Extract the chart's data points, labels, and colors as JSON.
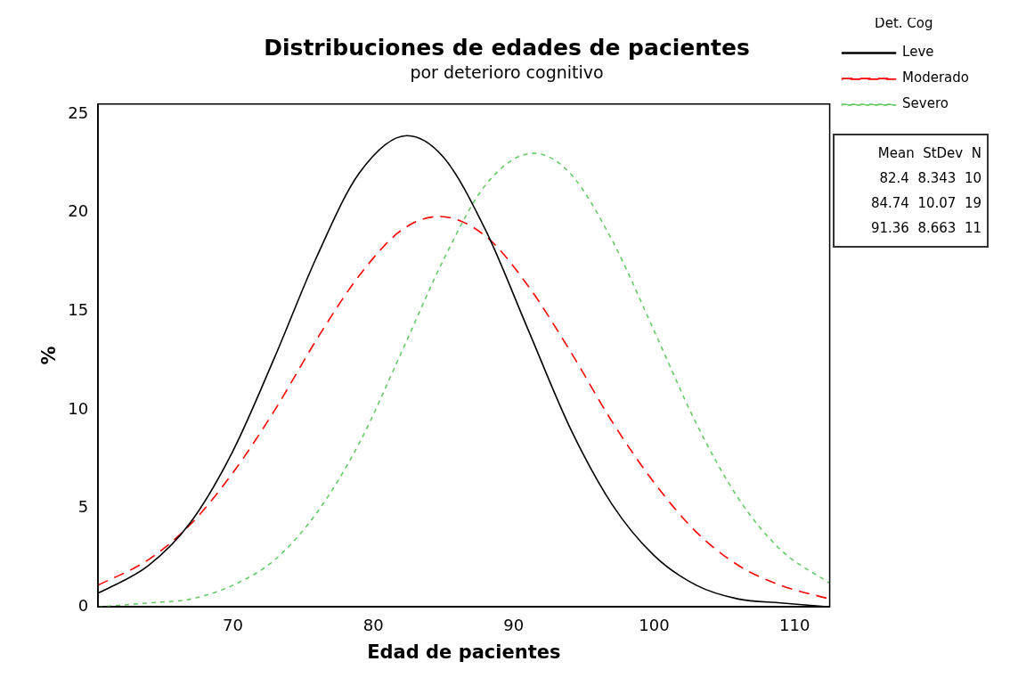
{
  "chart_data": {
    "type": "line",
    "title": "Distribuciones de edades de pacientes",
    "subtitle": "por deterioro cognitivo",
    "xlabel": "Edad de pacientes",
    "ylabel": "%",
    "legend_title": "Det. Cog",
    "legend": "right",
    "grid": false,
    "marker": "none",
    "xlim": [
      60.4,
      112.5
    ],
    "xticks": [
      70,
      80,
      90,
      100,
      110
    ],
    "ylim": [
      0,
      25.5
    ],
    "yticks": [
      0,
      5,
      10,
      15,
      20,
      25
    ],
    "series": [
      {
        "name": "Leve",
        "color": "#000000",
        "line_style": "solid",
        "x": [
          60.4,
          61,
          64,
          67,
          70,
          73,
          76,
          79,
          82.4,
          85,
          88,
          91,
          94,
          97,
          100,
          103,
          106,
          109,
          112.5
        ],
        "values": [
          0.7,
          0.9,
          2.1,
          4.3,
          7.9,
          12.7,
          17.8,
          22.0,
          23.9,
          22.8,
          19.1,
          14.1,
          9.1,
          5.2,
          2.6,
          1.1,
          0.4,
          0.2,
          0.0
        ]
      },
      {
        "name": "Moderado",
        "color": "#ff0000",
        "line_style": "dashed",
        "x": [
          60.4,
          64,
          67,
          70,
          73,
          76,
          79,
          82,
          84.7,
          88,
          91,
          94,
          97,
          100,
          103,
          106,
          109,
          112.5
        ],
        "values": [
          1.1,
          2.4,
          4.2,
          6.8,
          10.0,
          13.6,
          16.8,
          19.1,
          19.8,
          18.8,
          16.3,
          13.0,
          9.4,
          6.3,
          3.8,
          2.1,
          1.1,
          0.4
        ]
      },
      {
        "name": "Severo",
        "color": "#66cc66",
        "line_style": "dashed",
        "x": [
          60.4,
          64,
          67,
          70,
          73,
          76,
          79,
          82,
          85,
          88,
          91.4,
          94,
          97,
          100,
          103,
          106,
          109,
          112.5
        ],
        "values": [
          0.0,
          0.2,
          0.4,
          1.1,
          2.4,
          4.8,
          8.3,
          12.9,
          17.6,
          21.4,
          23.0,
          22.0,
          18.6,
          14.0,
          9.3,
          5.5,
          2.9,
          1.2
        ]
      }
    ],
    "annotations": [
      "Mean  StDev  N",
      "82.4  8.343  10",
      "84.74  10.07  19",
      "91.36  8.663  11"
    ]
  }
}
